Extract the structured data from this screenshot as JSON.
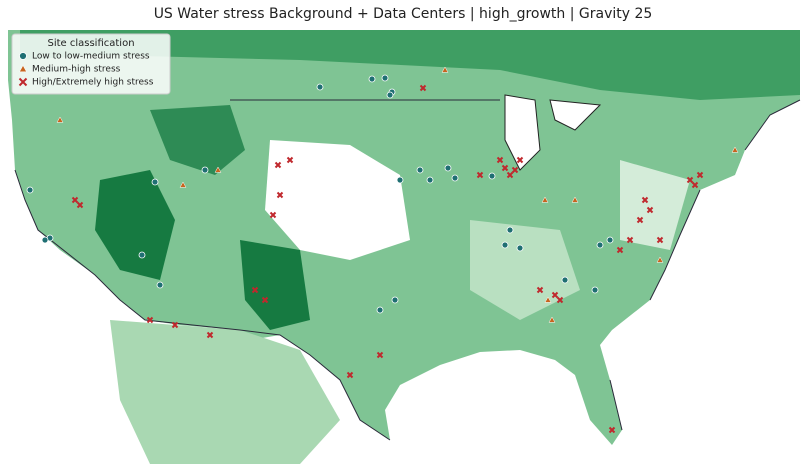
{
  "title": "US Water stress Background + Data Centers | high_growth | Gravity 25",
  "legend": {
    "title": "Site classification",
    "items": [
      {
        "label": "Low to low-medium stress",
        "color": "#1f6f73",
        "marker": "circle"
      },
      {
        "label": "Medium-high stress",
        "color": "#c8641e",
        "marker": "triangle"
      },
      {
        "label": "High/Extremely high stress",
        "color": "#c0282d",
        "marker": "cross"
      }
    ]
  }
}
